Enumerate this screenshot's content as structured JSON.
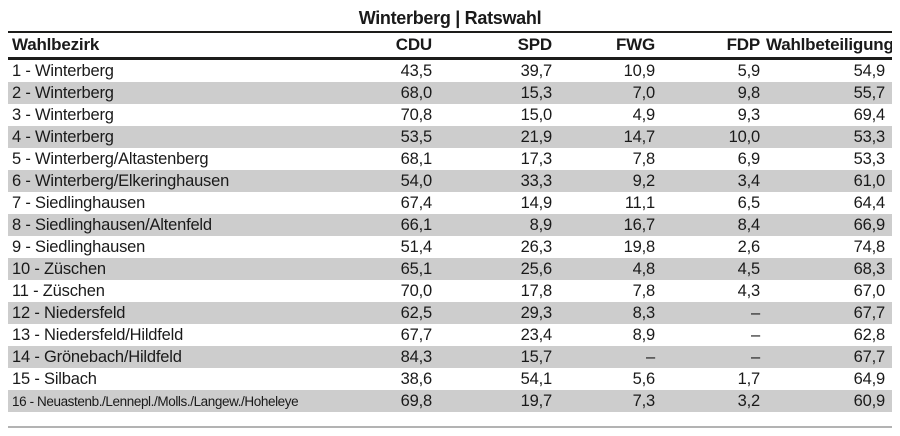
{
  "title": "Winterberg | Ratswahl",
  "chart_data": {
    "type": "table",
    "title": "Winterberg | Ratswahl",
    "decimal_separator": ",",
    "no_value_symbol": "–",
    "columns": [
      "Wahlbezirk",
      "CDU",
      "SPD",
      "FWG",
      "FDP",
      "Wahlbeteiligung"
    ],
    "rows": [
      [
        "1 - Winterberg",
        "43,5",
        "39,7",
        "10,9",
        "5,9",
        "54,9"
      ],
      [
        "2 - Winterberg",
        "68,0",
        "15,3",
        "7,0",
        "9,8",
        "55,7"
      ],
      [
        "3 - Winterberg",
        "70,8",
        "15,0",
        "4,9",
        "9,3",
        "69,4"
      ],
      [
        "4 - Winterberg",
        "53,5",
        "21,9",
        "14,7",
        "10,0",
        "53,3"
      ],
      [
        "5 - Winterberg/Altastenberg",
        "68,1",
        "17,3",
        "7,8",
        "6,9",
        "53,3"
      ],
      [
        "6 - Winterberg/Elkeringhausen",
        "54,0",
        "33,3",
        "9,2",
        "3,4",
        "61,0"
      ],
      [
        "7 - Siedlinghausen",
        "67,4",
        "14,9",
        "11,1",
        "6,5",
        "64,4"
      ],
      [
        "8 - Siedlinghausen/Altenfeld",
        "66,1",
        "8,9",
        "16,7",
        "8,4",
        "66,9"
      ],
      [
        "9 - Siedlinghausen",
        "51,4",
        "26,3",
        "19,8",
        "2,6",
        "74,8"
      ],
      [
        "10 - Züschen",
        "65,1",
        "25,6",
        "4,8",
        "4,5",
        "68,3"
      ],
      [
        "11 - Züschen",
        "70,0",
        "17,8",
        "7,8",
        "4,3",
        "67,0"
      ],
      [
        "12 - Niedersfeld",
        "62,5",
        "29,3",
        "8,3",
        "–",
        "67,7"
      ],
      [
        "13 - Niedersfeld/Hildfeld",
        "67,7",
        "23,4",
        "8,9",
        "–",
        "62,8"
      ],
      [
        "14 - Grönebach/Hildfeld",
        "84,3",
        "15,7",
        "–",
        "–",
        "67,7"
      ],
      [
        "15 - Silbach",
        "38,6",
        "54,1",
        "5,6",
        "1,7",
        "64,9"
      ],
      [
        "16 - Neuastenb./Lennepl./Molls./Langew./Hoheleye",
        "69,8",
        "19,7",
        "7,3",
        "3,2",
        "60,9"
      ]
    ]
  },
  "colors": {
    "text": "#1a1a1a",
    "row_alt_background": "#cdcdcd",
    "rule_dark": "#1d1d1b",
    "rule_light": "#b3b3b3"
  }
}
